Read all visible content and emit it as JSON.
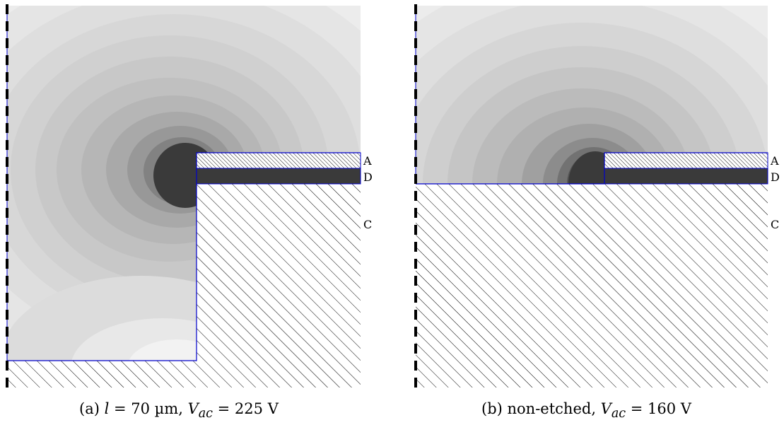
{
  "captions": {
    "a": {
      "prefix": "(a) ",
      "var1": "l",
      "eq1": " = 70 µm, ",
      "var2": "V",
      "sub2": "ac",
      "eq2": " = 225 V"
    },
    "b": {
      "prefix": "(b) non-etched, ",
      "var2": "V",
      "sub2": "ac",
      "eq2": " = 160 V"
    }
  },
  "layer_labels": {
    "a": "A",
    "d": "D",
    "c": "C"
  },
  "colors": {
    "boundary": "#0000cc",
    "dielectric": "#3a3a3a",
    "hatch": "#000000",
    "symmetry_axis": "#000000"
  }
}
